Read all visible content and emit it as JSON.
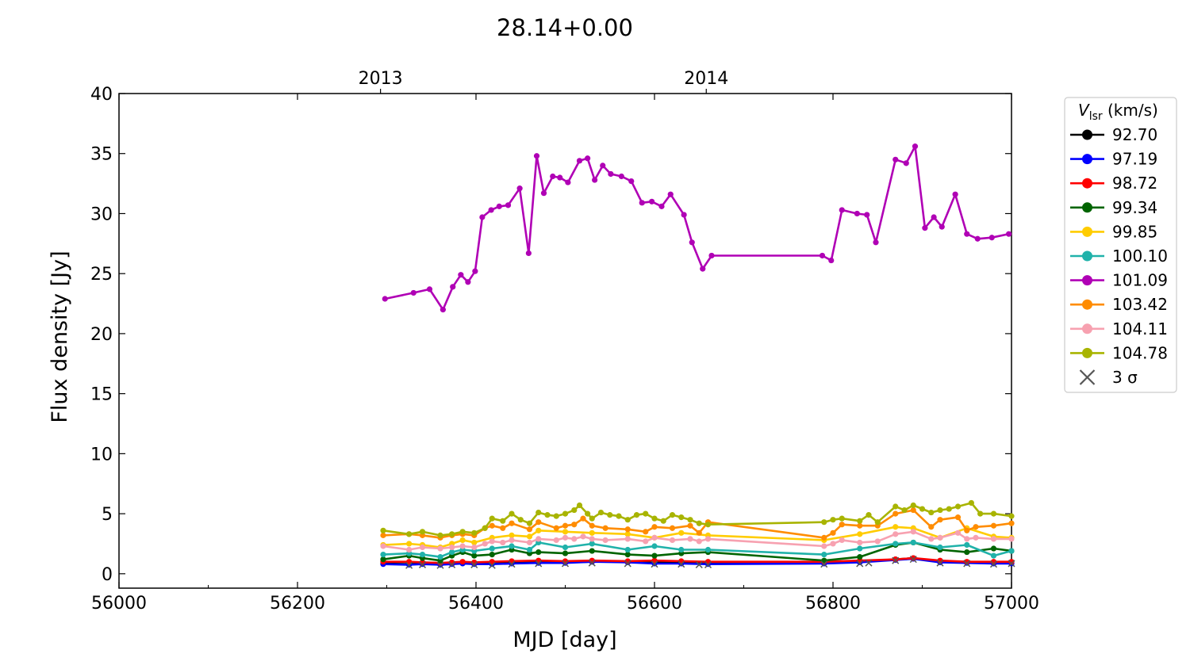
{
  "chart_data": {
    "type": "line",
    "title": "28.14+0.00",
    "xlabel": "MJD [day]",
    "ylabel": "Flux density [Jy]",
    "xlim": [
      56000,
      57000
    ],
    "ylim": [
      -1.2,
      40
    ],
    "xticks": [
      56000,
      56200,
      56400,
      56600,
      56800,
      57000
    ],
    "yticks": [
      0,
      5,
      10,
      15,
      20,
      25,
      30,
      35,
      40
    ],
    "top_axis": {
      "ticks": [
        {
          "x": 56293,
          "label": "2013"
        },
        {
          "x": 56658,
          "label": "2014"
        }
      ]
    },
    "legend": {
      "title": "V_lsr (km/s)",
      "title_main": "V",
      "title_sub": "lsr",
      "title_unit": " (km/s)",
      "placement": "outside right",
      "limit_label": "3 σ",
      "limit_color": "#555555"
    },
    "series": [
      {
        "name": "92.70",
        "color": "#000000",
        "x": [
          56296,
          56325,
          56340,
          56360,
          56373,
          56385,
          56398,
          56418,
          56440,
          56470,
          56500,
          56530,
          56570,
          56600,
          56630,
          56660,
          56790,
          56830,
          56870,
          56890,
          56920,
          56950,
          56980,
          57000
        ],
        "y": [
          0.85,
          0.8,
          0.85,
          0.8,
          0.85,
          0.9,
          0.85,
          0.85,
          0.9,
          0.95,
          0.95,
          1.0,
          1.0,
          0.95,
          0.95,
          0.9,
          0.9,
          1.0,
          1.2,
          1.3,
          1.0,
          0.95,
          0.9,
          0.9
        ]
      },
      {
        "name": "97.19",
        "color": "#0000ff",
        "x": [
          56296,
          56325,
          56340,
          56360,
          56373,
          56385,
          56398,
          56418,
          56440,
          56470,
          56500,
          56530,
          56570,
          56600,
          56630,
          56660,
          56790,
          56830,
          56870,
          56890,
          56920,
          56950,
          56980,
          57000
        ],
        "y": [
          0.8,
          0.75,
          0.8,
          0.75,
          0.8,
          0.85,
          0.8,
          0.8,
          0.85,
          0.9,
          0.9,
          1.0,
          0.95,
          0.85,
          0.85,
          0.8,
          0.85,
          0.95,
          1.15,
          1.25,
          0.95,
          0.9,
          0.85,
          0.85
        ]
      },
      {
        "name": "98.72",
        "color": "#ff0000",
        "x": [
          56296,
          56325,
          56340,
          56360,
          56373,
          56385,
          56398,
          56418,
          56440,
          56470,
          56500,
          56530,
          56570,
          56600,
          56630,
          56660,
          56790,
          56830,
          56870,
          56890,
          56920,
          56950,
          56980,
          57000
        ],
        "y": [
          1.0,
          1.0,
          0.95,
          0.9,
          0.95,
          1.0,
          0.95,
          1.0,
          1.05,
          1.1,
          1.05,
          1.1,
          1.05,
          1.1,
          1.05,
          1.0,
          1.0,
          1.1,
          1.2,
          1.3,
          1.1,
          1.0,
          1.0,
          1.0
        ]
      },
      {
        "name": "99.34",
        "color": "#006400",
        "x": [
          56296,
          56325,
          56340,
          56360,
          56373,
          56385,
          56398,
          56418,
          56440,
          56460,
          56470,
          56500,
          56530,
          56570,
          56600,
          56630,
          56660,
          56790,
          56830,
          56870,
          56890,
          56920,
          56950,
          56980,
          57000
        ],
        "y": [
          1.2,
          1.5,
          1.3,
          1.1,
          1.5,
          1.8,
          1.5,
          1.6,
          2.0,
          1.7,
          1.8,
          1.7,
          1.9,
          1.6,
          1.5,
          1.7,
          1.8,
          1.1,
          1.4,
          2.4,
          2.6,
          2.0,
          1.8,
          2.1,
          1.9
        ]
      },
      {
        "name": "99.85",
        "color": "#ffcc00",
        "x": [
          56296,
          56325,
          56340,
          56360,
          56373,
          56385,
          56398,
          56418,
          56440,
          56460,
          56470,
          56500,
          56530,
          56570,
          56600,
          56630,
          56660,
          56790,
          56830,
          56870,
          56890,
          56920,
          56950,
          56980,
          57000
        ],
        "y": [
          2.4,
          2.5,
          2.4,
          2.2,
          2.5,
          2.8,
          2.6,
          3.0,
          3.2,
          3.1,
          3.6,
          3.5,
          3.4,
          3.3,
          3.0,
          3.4,
          3.2,
          2.8,
          3.3,
          3.9,
          3.8,
          3.0,
          3.8,
          3.1,
          3.0
        ]
      },
      {
        "name": "100.10",
        "color": "#20b2aa",
        "x": [
          56296,
          56325,
          56340,
          56360,
          56373,
          56385,
          56398,
          56418,
          56440,
          56460,
          56470,
          56500,
          56530,
          56570,
          56600,
          56630,
          56660,
          56790,
          56830,
          56870,
          56890,
          56920,
          56950,
          56980,
          57000
        ],
        "y": [
          1.6,
          1.7,
          1.6,
          1.4,
          1.8,
          2.0,
          1.9,
          2.1,
          2.3,
          2.0,
          2.6,
          2.2,
          2.5,
          2.0,
          2.3,
          2.0,
          2.0,
          1.6,
          2.1,
          2.5,
          2.6,
          2.2,
          2.4,
          1.5,
          1.9
        ]
      },
      {
        "name": "101.09",
        "color": "#b000b5",
        "x": [
          56298,
          56330,
          56348,
          56363,
          56374,
          56383,
          56391,
          56399,
          56407,
          56417,
          56426,
          56436,
          56449,
          56459,
          56468,
          56476,
          56486,
          56494,
          56503,
          56516,
          56525,
          56533,
          56542,
          56551,
          56563,
          56574,
          56586,
          56597,
          56608,
          56618,
          56633,
          56642,
          56654,
          56664,
          56788,
          56798,
          56810,
          56827,
          56838,
          56848,
          56870,
          56882,
          56892,
          56903,
          56913,
          56922,
          56937,
          56950,
          56962,
          56978,
          56997
        ],
        "y": [
          22.9,
          23.4,
          23.7,
          22.0,
          23.9,
          24.9,
          24.3,
          25.2,
          29.7,
          30.3,
          30.6,
          30.7,
          32.1,
          26.7,
          34.8,
          31.7,
          33.1,
          33.0,
          32.6,
          34.4,
          34.6,
          32.8,
          34.0,
          33.3,
          33.1,
          32.7,
          30.9,
          31.0,
          30.6,
          31.6,
          29.9,
          27.6,
          25.4,
          26.5,
          26.5,
          26.1,
          30.3,
          30.0,
          29.9,
          27.6,
          34.5,
          34.2,
          35.6,
          28.8,
          29.7,
          28.9,
          31.6,
          28.3,
          27.9,
          28.0,
          28.3
        ]
      },
      {
        "name": "103.42",
        "color": "#ff8c00",
        "x": [
          56296,
          56325,
          56340,
          56360,
          56373,
          56385,
          56398,
          56410,
          56418,
          56430,
          56440,
          56460,
          56470,
          56490,
          56500,
          56510,
          56520,
          56530,
          56545,
          56570,
          56590,
          56600,
          56620,
          56640,
          56650,
          56660,
          56790,
          56800,
          56810,
          56830,
          56850,
          56870,
          56890,
          56910,
          56920,
          56940,
          56950,
          56960,
          56980,
          57000
        ],
        "y": [
          3.2,
          3.3,
          3.2,
          3.0,
          3.2,
          3.3,
          3.2,
          3.8,
          4.0,
          3.8,
          4.2,
          3.7,
          4.3,
          3.8,
          4.0,
          4.1,
          4.6,
          4.0,
          3.8,
          3.7,
          3.5,
          3.9,
          3.8,
          4.0,
          3.4,
          4.3,
          3.0,
          3.4,
          4.1,
          4.0,
          4.0,
          5.0,
          5.3,
          3.9,
          4.5,
          4.7,
          3.6,
          3.9,
          4.0,
          4.2
        ]
      },
      {
        "name": "104.11",
        "color": "#f7a1b0",
        "x": [
          56296,
          56325,
          56340,
          56360,
          56373,
          56385,
          56398,
          56410,
          56418,
          56430,
          56440,
          56460,
          56470,
          56490,
          56500,
          56510,
          56520,
          56530,
          56545,
          56570,
          56590,
          56600,
          56620,
          56640,
          56650,
          56660,
          56790,
          56800,
          56810,
          56830,
          56850,
          56870,
          56890,
          56910,
          56920,
          56940,
          56950,
          56960,
          56980,
          57000
        ],
        "y": [
          2.3,
          2.0,
          2.2,
          2.1,
          2.2,
          2.3,
          2.2,
          2.5,
          2.7,
          2.6,
          2.8,
          2.6,
          2.9,
          2.8,
          3.0,
          2.9,
          3.1,
          2.9,
          2.8,
          2.9,
          2.7,
          3.0,
          2.8,
          2.9,
          2.7,
          2.9,
          2.3,
          2.5,
          2.8,
          2.6,
          2.7,
          3.3,
          3.5,
          2.9,
          3.0,
          3.4,
          2.9,
          3.0,
          2.9,
          2.9
        ]
      },
      {
        "name": "104.78",
        "color": "#a8b400",
        "x": [
          56296,
          56325,
          56340,
          56360,
          56373,
          56385,
          56398,
          56410,
          56418,
          56430,
          56440,
          56450,
          56460,
          56470,
          56480,
          56490,
          56500,
          56510,
          56516,
          56525,
          56530,
          56540,
          56550,
          56560,
          56570,
          56580,
          56590,
          56600,
          56610,
          56620,
          56630,
          56640,
          56650,
          56660,
          56790,
          56800,
          56810,
          56830,
          56840,
          56850,
          56870,
          56880,
          56890,
          56900,
          56910,
          56920,
          56930,
          56940,
          56955,
          56965,
          56980,
          57000
        ],
        "y": [
          3.6,
          3.3,
          3.5,
          3.2,
          3.3,
          3.5,
          3.4,
          3.8,
          4.6,
          4.4,
          5.0,
          4.5,
          4.2,
          5.1,
          4.9,
          4.8,
          5.0,
          5.3,
          5.7,
          5.0,
          4.6,
          5.1,
          4.9,
          4.8,
          4.5,
          4.9,
          5.0,
          4.6,
          4.4,
          4.9,
          4.7,
          4.5,
          4.2,
          4.1,
          4.3,
          4.5,
          4.6,
          4.4,
          4.9,
          4.3,
          5.6,
          5.3,
          5.7,
          5.4,
          5.1,
          5.3,
          5.4,
          5.6,
          5.9,
          5.0,
          5.0,
          4.8
        ]
      }
    ],
    "limits_3sigma": {
      "x": [
        56325,
        56340,
        56360,
        56373,
        56398,
        56418,
        56440,
        56470,
        56500,
        56530,
        56570,
        56600,
        56630,
        56650,
        56660,
        56790,
        56830,
        56840,
        56870,
        56890,
        56920,
        56950,
        56980,
        57000
      ],
      "y": [
        0.7,
        0.75,
        0.7,
        0.75,
        0.75,
        0.7,
        0.8,
        0.85,
        0.85,
        0.9,
        0.85,
        0.8,
        0.8,
        0.75,
        0.75,
        0.8,
        0.85,
        0.9,
        1.1,
        1.2,
        0.9,
        0.85,
        0.8,
        0.85
      ]
    }
  }
}
